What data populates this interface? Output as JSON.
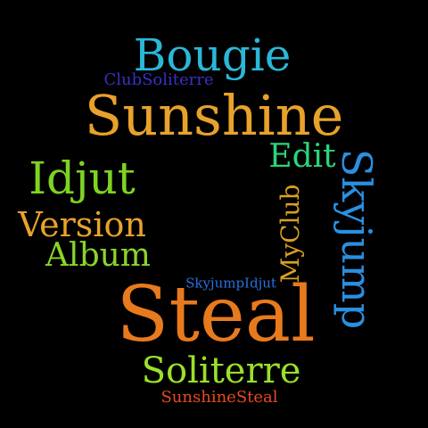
{
  "words": [
    {
      "text": "Bougie",
      "color": "#2AB7D8"
    },
    {
      "text": "ClubSoliterre",
      "color": "#3B2FC2"
    },
    {
      "text": "Sunshine",
      "color": "#E8A22B"
    },
    {
      "text": "Edit",
      "color": "#2BD47A"
    },
    {
      "text": "Idjut",
      "color": "#7ED321"
    },
    {
      "text": "Skyjump",
      "color": "#2A8FE0"
    },
    {
      "text": "MyClub",
      "color": "#D8A020"
    },
    {
      "text": "Version",
      "color": "#E8A22B"
    },
    {
      "text": "Album",
      "color": "#8BD42A"
    },
    {
      "text": "SkyjumpIdjut",
      "color": "#2A6FE0"
    },
    {
      "text": "Steal",
      "color": "#E87A1E"
    },
    {
      "text": "Soliterre",
      "color": "#9BE02A"
    },
    {
      "text": "SunshineSteal",
      "color": "#E84A1E"
    }
  ]
}
